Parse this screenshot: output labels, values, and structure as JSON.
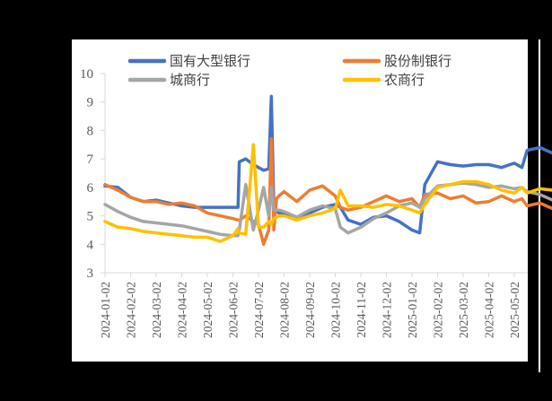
{
  "chart_data": {
    "type": "line",
    "title": "",
    "xlabel": "",
    "ylabel": "",
    "ylim": [
      3,
      10
    ],
    "yticks": [
      3,
      4,
      5,
      6,
      7,
      8,
      9,
      10
    ],
    "grid": false,
    "legend_position": "top",
    "xtick_labels": [
      "2024-01-02",
      "2024-02-02",
      "2024-03-02",
      "2024-04-02",
      "2024-05-02",
      "2024-06-02",
      "2024-07-02",
      "2024-08-02",
      "2024-09-02",
      "2024-10-02",
      "2024-11-02",
      "2024-12-02",
      "2025-01-02",
      "2025-02-02",
      "2025-03-02",
      "2025-04-02",
      "2025-05-02"
    ],
    "x": [
      0,
      0.5,
      1,
      1.5,
      2,
      2.5,
      3,
      3.5,
      4,
      4.5,
      5,
      5.2,
      5.25,
      5.5,
      5.8,
      6,
      6.2,
      6.4,
      6.5,
      6.6,
      6.7,
      6.8,
      7,
      7.5,
      8,
      8.5,
      9,
      9.2,
      9.5,
      10,
      10.5,
      11,
      11.5,
      12,
      12.3,
      12.5,
      13,
      13.5,
      14,
      14.5,
      15,
      15.5,
      16,
      16.3,
      16.5,
      17,
      17.5,
      17.8
    ],
    "series": [
      {
        "name": "国有大型银行",
        "color": "#4472C4",
        "values": [
          6.05,
          6.0,
          5.65,
          5.5,
          5.55,
          5.45,
          5.35,
          5.3,
          5.3,
          5.3,
          5.3,
          5.3,
          6.9,
          7.0,
          6.8,
          6.7,
          6.6,
          6.65,
          9.2,
          5.3,
          5.15,
          5.1,
          5.1,
          4.9,
          5.1,
          5.3,
          5.4,
          5.3,
          4.85,
          4.7,
          4.95,
          5.0,
          4.8,
          4.5,
          4.4,
          6.1,
          6.9,
          6.8,
          6.75,
          6.8,
          6.8,
          6.7,
          6.85,
          6.7,
          7.3,
          7.4,
          7.2,
          7.2
        ]
      },
      {
        "name": "股份制银行",
        "color": "#ED7D31",
        "values": [
          6.1,
          5.9,
          5.65,
          5.5,
          5.5,
          5.4,
          5.45,
          5.35,
          5.1,
          5.0,
          4.9,
          4.85,
          4.85,
          5.0,
          4.8,
          4.7,
          4.0,
          4.5,
          7.7,
          4.5,
          5.6,
          5.7,
          5.85,
          5.5,
          5.9,
          6.05,
          5.7,
          5.3,
          5.2,
          5.3,
          5.5,
          5.7,
          5.5,
          5.6,
          5.3,
          5.75,
          5.8,
          5.6,
          5.7,
          5.45,
          5.5,
          5.7,
          5.5,
          5.6,
          5.35,
          5.45,
          5.25,
          5.15
        ]
      },
      {
        "name": "城商行",
        "color": "#A5A5A5",
        "values": [
          5.4,
          5.15,
          4.95,
          4.8,
          4.75,
          4.7,
          4.65,
          4.55,
          4.45,
          4.35,
          4.3,
          4.3,
          4.5,
          6.1,
          4.5,
          5.2,
          6.0,
          5.0,
          6.0,
          5.2,
          5.2,
          5.2,
          5.15,
          4.95,
          5.2,
          5.35,
          5.25,
          4.6,
          4.4,
          4.6,
          4.9,
          5.1,
          5.35,
          5.45,
          5.3,
          5.6,
          6.05,
          6.1,
          6.15,
          6.1,
          6.0,
          6.05,
          5.95,
          6.0,
          5.85,
          5.75,
          5.55,
          5.65
        ]
      },
      {
        "name": "农商行",
        "color": "#FFC000",
        "values": [
          4.8,
          4.6,
          4.55,
          4.45,
          4.4,
          4.35,
          4.3,
          4.25,
          4.25,
          4.1,
          4.3,
          4.55,
          4.4,
          4.35,
          7.5,
          4.6,
          4.6,
          4.8,
          4.7,
          4.9,
          4.95,
          5.0,
          5.0,
          4.85,
          5.0,
          5.1,
          5.25,
          5.9,
          5.35,
          5.35,
          5.3,
          5.4,
          5.35,
          5.2,
          5.1,
          5.4,
          6.0,
          6.1,
          6.2,
          6.2,
          6.1,
          5.9,
          5.8,
          6.0,
          5.8,
          5.95,
          5.9,
          5.55
        ]
      }
    ]
  },
  "legend": {
    "items": [
      {
        "label": "国有大型银行",
        "color": "#4472C4"
      },
      {
        "label": "股份制银行",
        "color": "#ED7D31"
      },
      {
        "label": "城商行",
        "color": "#A5A5A5"
      },
      {
        "label": "农商行",
        "color": "#FFC000"
      }
    ]
  }
}
